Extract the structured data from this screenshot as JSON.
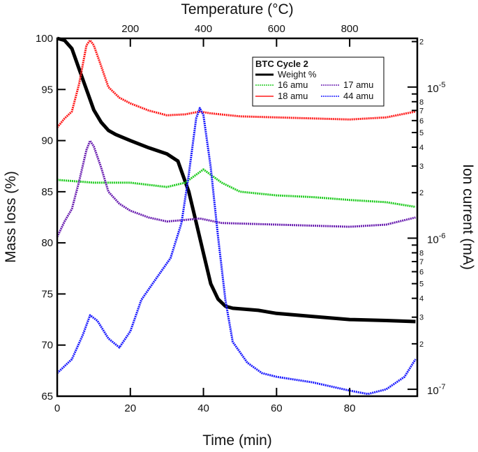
{
  "chart_data": {
    "type": "line",
    "title": "",
    "xlabel": "Time (min)",
    "x2label": "Temperature (°C)",
    "ylabel": "Mass loss (%)",
    "y2label": "Ion current (mA)",
    "xlim": [
      0,
      98.5
    ],
    "ylim": [
      65,
      100
    ],
    "y2lim": [
      9e-08,
      2.1e-05
    ],
    "y2scale": "log",
    "grid": false,
    "x_ticks": [
      0,
      20,
      40,
      60,
      80
    ],
    "x2_ticks": [
      {
        "time": 20,
        "label": "200"
      },
      {
        "time": 40,
        "label": "400"
      },
      {
        "time": 60,
        "label": "600"
      },
      {
        "time": 80,
        "label": "800"
      }
    ],
    "y_ticks": [
      65,
      70,
      75,
      80,
      85,
      90,
      95,
      100
    ],
    "y2_decades": [
      {
        "value": 1e-05,
        "base": "10",
        "exp": "-5"
      },
      {
        "value": 1e-06,
        "base": "10",
        "exp": "-6"
      },
      {
        "value": 1e-07,
        "base": "10",
        "exp": "-7"
      }
    ],
    "legend": {
      "title": "BTC Cycle 2",
      "position": "top-right"
    },
    "series": [
      {
        "name": "Weight %",
        "axis": "left",
        "color": "#000000",
        "x": [
          0,
          2,
          4,
          6,
          8,
          10,
          12,
          14,
          16,
          20,
          25,
          30,
          33,
          36,
          38,
          40,
          42,
          44,
          46,
          48,
          55,
          60,
          70,
          80,
          90,
          98
        ],
        "y": [
          100,
          99.8,
          99,
          97,
          95,
          93,
          91.8,
          91,
          90.6,
          90,
          89.3,
          88.7,
          88,
          85,
          82,
          79,
          76,
          74.5,
          73.8,
          73.6,
          73.4,
          73.1,
          72.8,
          72.5,
          72.4,
          72.3
        ]
      },
      {
        "name": "16 amu",
        "axis": "right",
        "color": "#22cc22",
        "x": [
          0,
          10,
          20,
          30,
          35,
          40,
          45,
          50,
          60,
          70,
          80,
          90,
          98
        ],
        "y": [
          2.43e-06,
          2.33e-06,
          2.33e-06,
          2.18e-06,
          2.33e-06,
          2.85e-06,
          2.33e-06,
          2.03e-06,
          1.92e-06,
          1.87e-06,
          1.79e-06,
          1.73e-06,
          1.61e-06
        ]
      },
      {
        "name": "17 amu",
        "axis": "right",
        "color": "#6a1fb0",
        "x": [
          0,
          2,
          4,
          6,
          8,
          9,
          10,
          12,
          14,
          17,
          20,
          25,
          30,
          35,
          39,
          45,
          60,
          80,
          90,
          98
        ],
        "y": [
          1.02e-06,
          1.29e-06,
          1.56e-06,
          2.38e-06,
          3.84e-06,
          4.41e-06,
          4.05e-06,
          2.94e-06,
          2.03e-06,
          1.69e-06,
          1.52e-06,
          1.37e-06,
          1.29e-06,
          1.32e-06,
          1.35e-06,
          1.26e-06,
          1.23e-06,
          1.19e-06,
          1.23e-06,
          1.37e-06
        ]
      },
      {
        "name": "18 amu",
        "axis": "right",
        "color": "#ff1a1a",
        "x": [
          0,
          2,
          4,
          6,
          8,
          9,
          10,
          12,
          14,
          17,
          20,
          25,
          30,
          35,
          39,
          42,
          50,
          60,
          70,
          80,
          90,
          98
        ],
        "y": [
          5.4e-06,
          6.2e-06,
          6.89e-06,
          1.05e-05,
          1.89e-05,
          2.04e-05,
          1.89e-05,
          1.38e-05,
          1e-05,
          8.5e-06,
          7.8e-06,
          7e-06,
          6.5e-06,
          6.6e-06,
          6.89e-06,
          6.7e-06,
          6.4e-06,
          6.3e-06,
          6.2e-06,
          6.1e-06,
          6.3e-06,
          6.89e-06
        ]
      },
      {
        "name": "44 amu",
        "axis": "right",
        "color": "#1a1aff",
        "x": [
          0,
          4,
          7,
          9,
          11,
          14,
          17,
          20,
          23,
          27,
          31,
          34,
          36,
          38,
          39,
          40,
          42,
          44,
          46,
          48,
          52,
          56,
          60,
          70,
          80,
          85,
          90,
          95,
          98
        ],
        "y": [
          1.28e-07,
          1.58e-07,
          2.29e-07,
          3.09e-07,
          2.84e-07,
          2.17e-07,
          1.89e-07,
          2.42e-07,
          3.9e-07,
          5.37e-07,
          7.38e-07,
          1.26e-06,
          2.65e-06,
          6.2e-06,
          7.26e-06,
          6.53e-06,
          2.94e-06,
          1.02e-06,
          3.9e-07,
          2.06e-07,
          1.5e-07,
          1.28e-07,
          1.21e-07,
          1.11e-07,
          9.8e-08,
          9.3e-08,
          1e-07,
          1.21e-07,
          1.58e-07
        ]
      }
    ]
  }
}
